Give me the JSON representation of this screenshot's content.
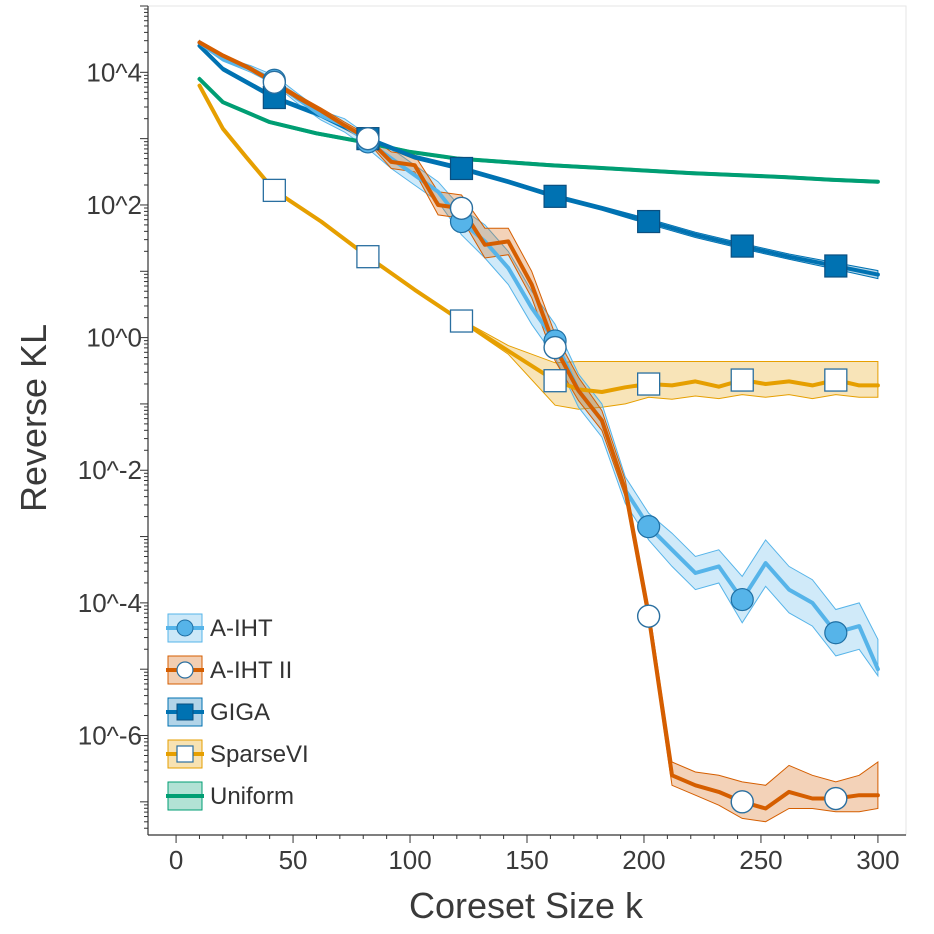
{
  "chart_data": {
    "type": "line",
    "xlabel": "Coreset Size k",
    "ylabel": "Reverse KL",
    "xlim": [
      -12,
      312
    ],
    "ylim_log10": [
      -7.5,
      5
    ],
    "yscale": "log",
    "xticks": [
      0,
      50,
      100,
      150,
      200,
      250,
      300
    ],
    "xtick_labels": [
      "0",
      "50",
      "100",
      "150",
      "200",
      "250",
      "300"
    ],
    "yticks_log10": [
      -6,
      -4,
      -2,
      0,
      2,
      4
    ],
    "ytick_labels": [
      "10^-6",
      "10^-4",
      "10^-2",
      "10^0",
      "10^2",
      "10^4"
    ],
    "grid": false,
    "legend_position": "bottom-left",
    "series": [
      {
        "name": "Uniform",
        "color": "#009E73",
        "marker": "none",
        "x": [
          10,
          20,
          40,
          60,
          80,
          100,
          120,
          140,
          160,
          180,
          200,
          220,
          240,
          260,
          280,
          300
        ],
        "log10_y": [
          3.9,
          3.55,
          3.25,
          3.08,
          2.95,
          2.8,
          2.7,
          2.65,
          2.6,
          2.56,
          2.52,
          2.48,
          2.45,
          2.42,
          2.38,
          2.35
        ],
        "log10_lower": [
          3.88,
          3.53,
          3.23,
          3.06,
          2.93,
          2.78,
          2.68,
          2.63,
          2.58,
          2.54,
          2.5,
          2.46,
          2.43,
          2.4,
          2.36,
          2.33
        ],
        "log10_upper": [
          3.92,
          3.57,
          3.27,
          3.1,
          2.97,
          2.82,
          2.72,
          2.67,
          2.62,
          2.58,
          2.54,
          2.5,
          2.47,
          2.44,
          2.4,
          2.37
        ]
      },
      {
        "name": "GIGA",
        "color": "#0072B2",
        "marker": "square-filled",
        "marker_x": [
          42,
          82,
          122,
          162,
          202,
          242,
          282
        ],
        "x": [
          10,
          20,
          42,
          62,
          82,
          102,
          122,
          142,
          162,
          182,
          202,
          222,
          242,
          262,
          282,
          300
        ],
        "log10_y": [
          4.4,
          4.05,
          3.62,
          3.35,
          3.0,
          2.72,
          2.55,
          2.35,
          2.13,
          1.95,
          1.75,
          1.55,
          1.38,
          1.22,
          1.08,
          0.95
        ],
        "log10_lower": [
          4.37,
          4.02,
          3.59,
          3.32,
          2.97,
          2.69,
          2.52,
          2.32,
          2.1,
          1.92,
          1.71,
          1.51,
          1.34,
          1.18,
          1.03,
          0.89
        ],
        "log10_upper": [
          4.43,
          4.08,
          3.65,
          3.38,
          3.03,
          2.75,
          2.58,
          2.38,
          2.16,
          1.98,
          1.79,
          1.59,
          1.42,
          1.26,
          1.13,
          1.01
        ]
      },
      {
        "name": "SparseVI",
        "color": "#E69F00",
        "marker": "square-open",
        "marker_x": [
          42,
          82,
          122,
          162,
          202,
          242,
          282
        ],
        "x": [
          10,
          20,
          30,
          42,
          62,
          82,
          102,
          122,
          142,
          162,
          172,
          182,
          192,
          202,
          212,
          222,
          232,
          242,
          252,
          262,
          272,
          282,
          292,
          300
        ],
        "log10_y": [
          3.8,
          3.15,
          2.72,
          2.22,
          1.75,
          1.22,
          0.72,
          0.25,
          -0.2,
          -0.65,
          -0.78,
          -0.82,
          -0.75,
          -0.7,
          -0.72,
          -0.66,
          -0.74,
          -0.64,
          -0.7,
          -0.66,
          -0.72,
          -0.64,
          -0.72,
          -0.72
        ],
        "log10_lower": [
          3.78,
          3.13,
          2.7,
          2.2,
          1.73,
          1.2,
          0.7,
          0.23,
          -0.25,
          -1.02,
          -1.08,
          -1.05,
          -1.0,
          -0.9,
          -0.93,
          -0.88,
          -0.92,
          -0.86,
          -0.9,
          -0.86,
          -0.92,
          -0.86,
          -0.9,
          -0.9
        ],
        "log10_upper": [
          3.82,
          3.17,
          2.74,
          2.24,
          1.77,
          1.24,
          0.74,
          0.27,
          -0.12,
          -0.38,
          -0.36,
          -0.36,
          -0.36,
          -0.36,
          -0.36,
          -0.36,
          -0.36,
          -0.36,
          -0.36,
          -0.36,
          -0.36,
          -0.36,
          -0.36,
          -0.36
        ]
      },
      {
        "name": "A-IHT",
        "color": "#56B4E9",
        "marker": "circle-filled",
        "marker_x": [
          42,
          82,
          122,
          162,
          202,
          242,
          282
        ],
        "x": [
          10,
          20,
          32,
          42,
          52,
          62,
          72,
          82,
          92,
          102,
          112,
          122,
          132,
          142,
          152,
          162,
          172,
          182,
          192,
          202,
          212,
          222,
          232,
          242,
          252,
          262,
          272,
          282,
          292,
          300
        ],
        "log10_y": [
          4.45,
          4.2,
          4.05,
          3.88,
          3.6,
          3.35,
          3.2,
          2.95,
          2.7,
          2.45,
          2.2,
          1.75,
          1.45,
          1.05,
          0.45,
          -0.05,
          -0.8,
          -1.25,
          -2.3,
          -2.85,
          -3.2,
          -3.55,
          -3.45,
          -3.95,
          -3.4,
          -3.8,
          -4.0,
          -4.45,
          -4.35,
          -5.0
        ],
        "log10_lower": [
          4.42,
          4.17,
          4.0,
          3.82,
          3.53,
          3.28,
          3.1,
          2.85,
          2.55,
          2.3,
          2.05,
          1.55,
          1.2,
          0.8,
          0.2,
          -0.3,
          -1.05,
          -1.5,
          -2.5,
          -3.05,
          -3.45,
          -3.8,
          -3.7,
          -4.3,
          -3.75,
          -4.15,
          -4.35,
          -4.8,
          -4.7,
          -5.1
        ],
        "log10_upper": [
          4.48,
          4.23,
          4.1,
          3.95,
          3.68,
          3.42,
          3.3,
          3.05,
          2.85,
          2.6,
          2.35,
          1.95,
          1.7,
          1.3,
          0.7,
          0.2,
          -0.55,
          -1.0,
          -2.1,
          -2.65,
          -2.95,
          -3.3,
          -3.2,
          -3.6,
          -3.05,
          -3.45,
          -3.65,
          -4.1,
          -4.0,
          -4.55
        ]
      },
      {
        "name": "A-IHT II",
        "color": "#D55E00",
        "marker": "circle-open",
        "marker_x": [
          42,
          82,
          122,
          162,
          202,
          242,
          282
        ],
        "x": [
          10,
          20,
          32,
          42,
          52,
          62,
          72,
          82,
          92,
          102,
          112,
          122,
          132,
          142,
          152,
          162,
          172,
          182,
          192,
          202,
          212,
          222,
          232,
          242,
          252,
          262,
          272,
          282,
          292,
          300
        ],
        "log10_y": [
          4.45,
          4.25,
          4.05,
          3.85,
          3.62,
          3.42,
          3.2,
          3.0,
          2.65,
          2.6,
          2.0,
          1.95,
          1.4,
          1.45,
          0.8,
          -0.15,
          -0.8,
          -1.25,
          -2.3,
          -4.2,
          -6.6,
          -6.75,
          -6.85,
          -7.0,
          -7.1,
          -6.85,
          -6.95,
          -6.95,
          -6.9,
          -6.9
        ],
        "log10_lower": [
          4.42,
          4.22,
          4.02,
          3.82,
          3.58,
          3.38,
          3.15,
          2.95,
          2.55,
          2.5,
          1.85,
          1.8,
          1.2,
          1.25,
          0.6,
          -0.35,
          -0.95,
          -1.4,
          -2.4,
          -4.3,
          -6.75,
          -6.9,
          -7.05,
          -7.25,
          -7.3,
          -7.1,
          -7.1,
          -7.15,
          -7.15,
          -7.1
        ],
        "log10_upper": [
          4.48,
          4.28,
          4.08,
          3.88,
          3.66,
          3.46,
          3.25,
          3.05,
          2.8,
          2.75,
          2.2,
          2.15,
          1.65,
          1.65,
          1.0,
          0.05,
          -0.6,
          -1.1,
          -2.15,
          -4.05,
          -6.4,
          -6.55,
          -6.6,
          -6.7,
          -6.75,
          -6.45,
          -6.6,
          -6.7,
          -6.6,
          -6.4
        ]
      }
    ],
    "legend_order": [
      "A-IHT",
      "A-IHT II",
      "GIGA",
      "SparseVI",
      "Uniform"
    ]
  }
}
